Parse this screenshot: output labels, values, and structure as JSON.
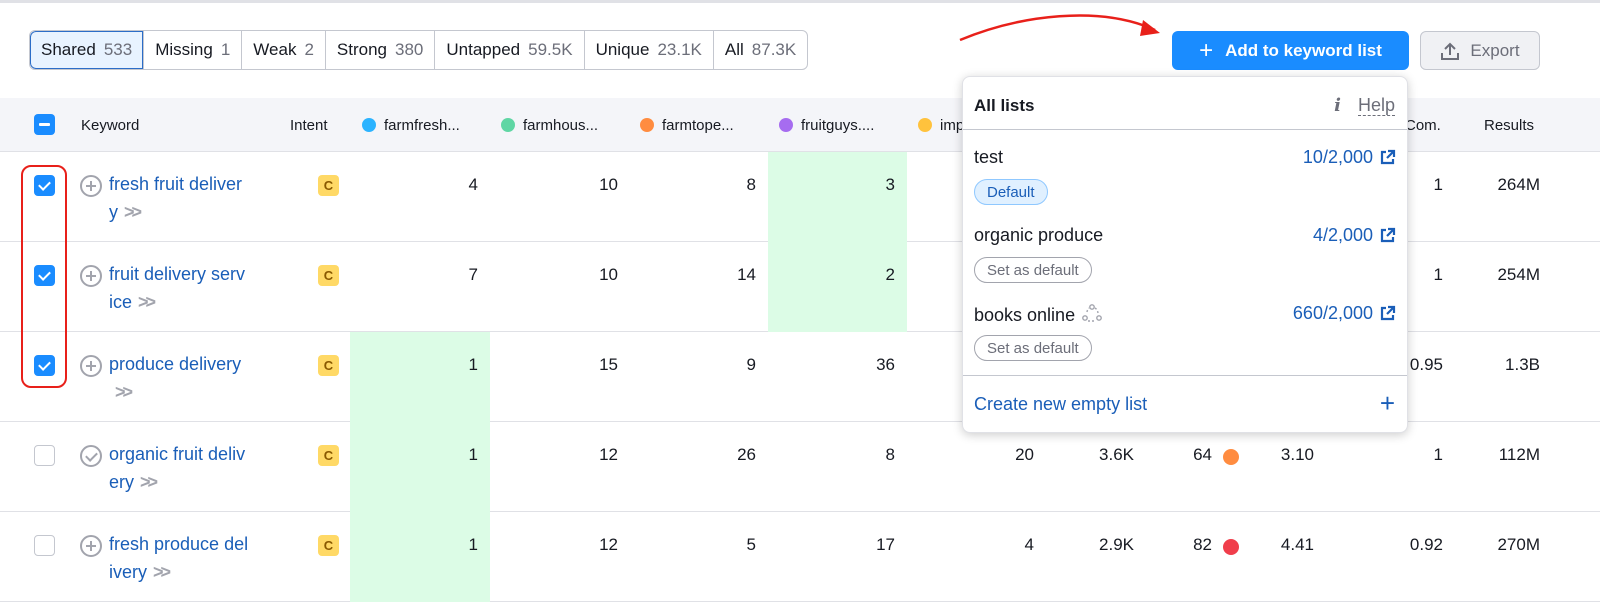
{
  "tabs": [
    {
      "label": "Shared",
      "count": "533",
      "active": true
    },
    {
      "label": "Missing",
      "count": "1"
    },
    {
      "label": "Weak",
      "count": "2"
    },
    {
      "label": "Strong",
      "count": "380"
    },
    {
      "label": "Untapped",
      "count": "59.5K"
    },
    {
      "label": "Unique",
      "count": "23.1K"
    },
    {
      "label": "All",
      "count": "87.3K"
    }
  ],
  "toolbar": {
    "add_label": "Add to keyword list",
    "export_label": "Export"
  },
  "header": {
    "keyword": "Keyword",
    "intent": "Intent",
    "domains": [
      {
        "label": "farmfresh...",
        "color": "#2bb3ff"
      },
      {
        "label": "farmhous...",
        "color": "#5fd6a4"
      },
      {
        "label": "farmtope...",
        "color": "#ff8c40"
      },
      {
        "label": "fruitguys....",
        "color": "#a66cf0"
      },
      {
        "label": "imp...",
        "color": "#ffc23d"
      }
    ],
    "com": "Com.",
    "results": "Results"
  },
  "rows": [
    {
      "keyword": "fresh fruit delivery",
      "checked": true,
      "icon": "plus",
      "intent": "C",
      "d": [
        "4",
        "10",
        "8",
        "3"
      ],
      "highlight": 3,
      "com": "1",
      "results": "264M"
    },
    {
      "keyword": "fruit delivery service",
      "checked": true,
      "icon": "plus",
      "intent": "C",
      "d": [
        "7",
        "10",
        "14",
        "2"
      ],
      "highlight": 3,
      "com": "1",
      "results": "254M"
    },
    {
      "keyword": "produce delivery",
      "checked": true,
      "icon": "plus",
      "intent": "C",
      "d": [
        "1",
        "15",
        "9",
        "36"
      ],
      "highlight": 0,
      "com": "0.95",
      "results": "1.3B"
    },
    {
      "keyword": "organic fruit delivery",
      "checked": false,
      "icon": "check",
      "intent": "C",
      "d": [
        "1",
        "12",
        "26",
        "8",
        "20"
      ],
      "highlight": 0,
      "volume": "3.6K",
      "kd": "64",
      "kd_color": "#ff8c40",
      "cpc": "3.10",
      "com": "1",
      "results": "112M"
    },
    {
      "keyword": "fresh produce delivery",
      "checked": false,
      "icon": "plus",
      "intent": "C",
      "d": [
        "1",
        "12",
        "5",
        "17",
        "4"
      ],
      "highlight": 0,
      "volume": "2.9K",
      "kd": "82",
      "kd_color": "#f03e4b",
      "cpc": "4.41",
      "com": "0.92",
      "results": "270M"
    }
  ],
  "popup": {
    "title": "All lists",
    "help": "Help",
    "lists": [
      {
        "name": "test",
        "count": "10/2,000",
        "badge": "Default",
        "default": true
      },
      {
        "name": "organic produce",
        "count": "4/2,000",
        "badge": "Set as default",
        "default": false
      },
      {
        "name": "books online",
        "count": "660/2,000",
        "badge": "Set as default",
        "default": false,
        "shared": true
      }
    ],
    "create": "Create new empty list"
  },
  "colors": {
    "accent": "#1a8cff",
    "link": "#1a5eb8",
    "highlight": "#dcfce6",
    "annotation": "#e8201a"
  }
}
